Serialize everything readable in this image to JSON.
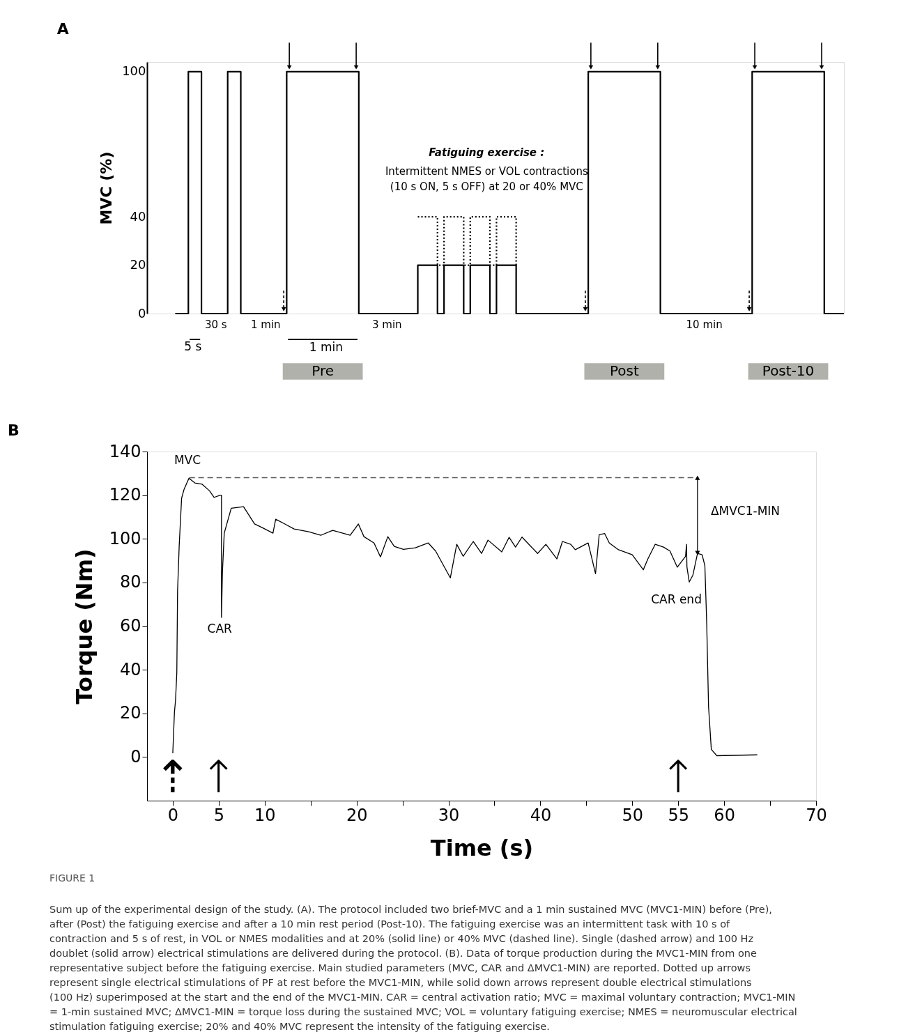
{
  "chart_data": [
    {
      "type": "step",
      "title": "A",
      "ylabel": "MVC (%)",
      "ylim": [
        0,
        104
      ],
      "yticks": [
        0,
        20,
        40,
        100
      ],
      "grid": false,
      "tick_labels": "y",
      "categories": [
        null,
        null,
        null,
        null,
        null,
        null,
        null,
        null,
        null,
        null,
        null,
        null,
        null,
        null,
        null,
        null,
        null,
        null,
        null,
        null,
        null,
        null,
        null,
        null,
        null,
        null,
        null,
        null,
        null,
        null,
        null,
        null,
        null,
        null,
        null,
        null,
        null,
        null,
        null,
        null,
        null,
        null,
        null,
        null,
        null,
        null,
        null,
        null,
        null,
        null,
        null,
        null,
        null,
        null,
        null,
        null,
        null,
        null,
        null,
        null,
        null,
        null,
        null,
        null,
        null,
        null,
        null,
        null,
        null,
        null,
        null,
        null,
        null,
        null,
        null,
        null,
        null,
        null,
        null,
        null,
        null,
        null,
        null,
        null,
        null,
        null,
        null,
        null,
        null,
        null,
        null,
        null,
        null,
        null,
        null,
        null,
        null,
        null,
        null,
        null,
        null,
        null,
        null
      ],
      "series": [
        {
          "color": "#000000",
          "line_style": "solid",
          "values": [
            0,
            0,
            100,
            100,
            0,
            0,
            0,
            0,
            100,
            100,
            0,
            0,
            0,
            0,
            0,
            0,
            0,
            100,
            100,
            100,
            100,
            100,
            100,
            100,
            100,
            100,
            100,
            100,
            0,
            0,
            0,
            0,
            0,
            0,
            0,
            0,
            0,
            20,
            20,
            20,
            0,
            20,
            20,
            20,
            0,
            20,
            20,
            20,
            0,
            20,
            20,
            20,
            0,
            0,
            0,
            0,
            0,
            0,
            0,
            0,
            0,
            0,
            0,
            100,
            100,
            100,
            100,
            100,
            100,
            100,
            100,
            100,
            100,
            100,
            0,
            0,
            0,
            0,
            0,
            0,
            0,
            0,
            0,
            0,
            0,
            0,
            0,
            0,
            100,
            100,
            100,
            100,
            100,
            100,
            100,
            100,
            100,
            100,
            100,
            0,
            0,
            0,
            0
          ]
        },
        {
          "color": "#000000",
          "line_style": "dotted",
          "values": [
            null,
            null,
            null,
            null,
            null,
            null,
            null,
            null,
            null,
            null,
            null,
            null,
            null,
            null,
            null,
            null,
            null,
            null,
            null,
            null,
            null,
            null,
            null,
            null,
            null,
            null,
            null,
            null,
            null,
            null,
            null,
            null,
            null,
            null,
            null,
            null,
            null,
            40,
            40,
            40,
            20,
            40,
            40,
            40,
            20,
            40,
            40,
            40,
            20,
            40,
            40,
            40,
            20,
            null,
            null,
            null,
            null,
            null,
            null,
            null,
            null,
            null,
            null,
            null,
            null,
            null,
            null,
            null,
            null,
            null,
            null,
            null,
            null,
            null,
            null,
            null,
            null,
            null,
            null,
            null,
            null,
            null,
            null,
            null,
            null,
            null,
            null,
            null,
            null,
            null,
            null,
            null,
            null,
            null,
            null,
            null,
            null,
            null,
            null,
            null,
            null,
            null,
            null
          ]
        }
      ],
      "annotations": [
        "Fatiguing exercise :",
        "Intermittent NMES or VOL contractions",
        "(10 s ON, 5 s OFF) at 20 or 40% MVC",
        "30 s",
        "1 min",
        "5 s",
        "1 min",
        "3 min",
        "10 min",
        "Pre",
        "Post",
        "Post-10"
      ]
    },
    {
      "type": "line",
      "title": "B",
      "xlabel": "Time (s)",
      "ylabel": "Torque (Nm)",
      "xlim": [
        -2.8,
        70
      ],
      "ylim": [
        -20,
        140
      ],
      "grid": false,
      "xticks": [
        0,
        5,
        10,
        {
          "value": 15,
          "label": null
        },
        20,
        {
          "value": 25,
          "label": null
        },
        30,
        {
          "value": 35,
          "label": null
        },
        40,
        {
          "value": 45,
          "label": null
        },
        50,
        55,
        60,
        {
          "value": 65,
          "label": null
        },
        70
      ],
      "yticks": [
        0,
        20,
        40,
        60,
        80,
        100,
        120,
        140
      ],
      "series": [
        {
          "color": "#000000",
          "x": [
            0,
            0.18,
            0.3,
            0.44,
            0.52,
            0.7,
            0.96,
            1.23,
            1.76,
            2.4,
            3.2,
            4.0,
            4.5,
            5.17,
            5.3,
            5.3,
            5.4,
            5.6,
            6.36,
            7.7,
            8.9,
            9.8,
            10.9,
            11.2,
            12.2,
            13.2,
            14.8,
            16.1,
            17.4,
            19.3,
            20.2,
            20.8,
            21.9,
            22.6,
            23.4,
            24.1,
            25.1,
            26.4,
            27.8,
            28.6,
            30.2,
            30.9,
            31.6,
            32.7,
            33.6,
            34.3,
            35.8,
            36.6,
            37.3,
            38,
            39.7,
            40.6,
            41.8,
            42.4,
            43.3,
            43.8,
            45.2,
            46,
            46.4,
            47,
            47.5,
            48.5,
            50,
            51.2,
            51.7,
            52.5,
            53.4,
            54.1,
            54.9,
            55.8,
            55.9,
            55.95,
            56.2,
            56.6,
            57.1,
            57.6,
            57.9,
            58.1,
            58.3,
            58.6,
            59.2,
            63.6
          ],
          "values": [
            1.7,
            20.5,
            26,
            38.7,
            76,
            97,
            118.6,
            122.7,
            127.8,
            125.6,
            125,
            122,
            119,
            120,
            120,
            64,
            84.4,
            102.6,
            114,
            114.7,
            106.8,
            105,
            102.6,
            109,
            106.8,
            104.5,
            103.2,
            101.6,
            103.9,
            101.6,
            106.8,
            101,
            98.1,
            91.7,
            101,
            96.5,
            95.2,
            95.9,
            98.1,
            94.4,
            82.1,
            97.5,
            92,
            98.8,
            93.3,
            99.4,
            94,
            100.7,
            96.2,
            100.8,
            93.3,
            97.5,
            90.8,
            98.8,
            97.5,
            95,
            98.1,
            84,
            101.9,
            102.4,
            98.1,
            95,
            92.7,
            85.8,
            90.8,
            97.5,
            96.2,
            94.4,
            87,
            92,
            97.5,
            87,
            80.2,
            83.4,
            93.3,
            92.7,
            87.7,
            61.4,
            23.1,
            3.5,
            0.6,
            1
          ]
        },
        {
          "color": "#555555",
          "line_style": "dashed",
          "x": [
            1.8,
            57.1
          ],
          "values": [
            128,
            128
          ]
        },
        {
          "color": "#000000",
          "line_style": "solid",
          "marker": "triangle",
          "x": [
            57.1,
            57.1
          ],
          "values": [
            128,
            93.5
          ]
        }
      ],
      "annotations": [
        "MVC",
        "CAR",
        "CAR end",
        "ΔMVC1-MIN",
        "⇡",
        "↑",
        "↑",
        "FIGURE 1",
        "Sum up of the experimental design of the study. (A). The protocol included two brief-MVC and a 1 min sustained MVC (MVC1-MIN) before (Pre), after (Post) the fatiguing exercise and after a 10 min rest period (Post-10). The fatiguing exercise was an intermittent task with 10 s of contraction and 5 s of rest, in VOL or NMES modalities and at 20% (solid line) or 40% MVC (dashed line). Single (dashed arrow) and 100 Hz doublet (solid arrow) electrical stimulations are delivered during the protocol. (B). Data of torque production during the MVC1-MIN from one representative subject before the fatiguing exercise. Main studied parameters (MVC, CAR and ΔMVC1-MIN) are reported. Dotted up arrows represent single electrical stimulations of PF at rest before the MVC1-MIN, while solid down arrows represent double electrical stimulations (100 Hz) superimposed at the start and the end of the MVC1-MIN. CAR = central activation ratio; MVC = maximal voluntary contraction; MVC1-MIN = 1-min sustained MVC; ΔMVC1-MIN = torque loss during the sustained MVC; VOL = voluntary fatiguing exercise; NMES = neuromuscular electrical stimulation fatiguing exercise; 20% and 40% MVC represent the intensity of the fatiguing exercise."
      ]
    }
  ]
}
